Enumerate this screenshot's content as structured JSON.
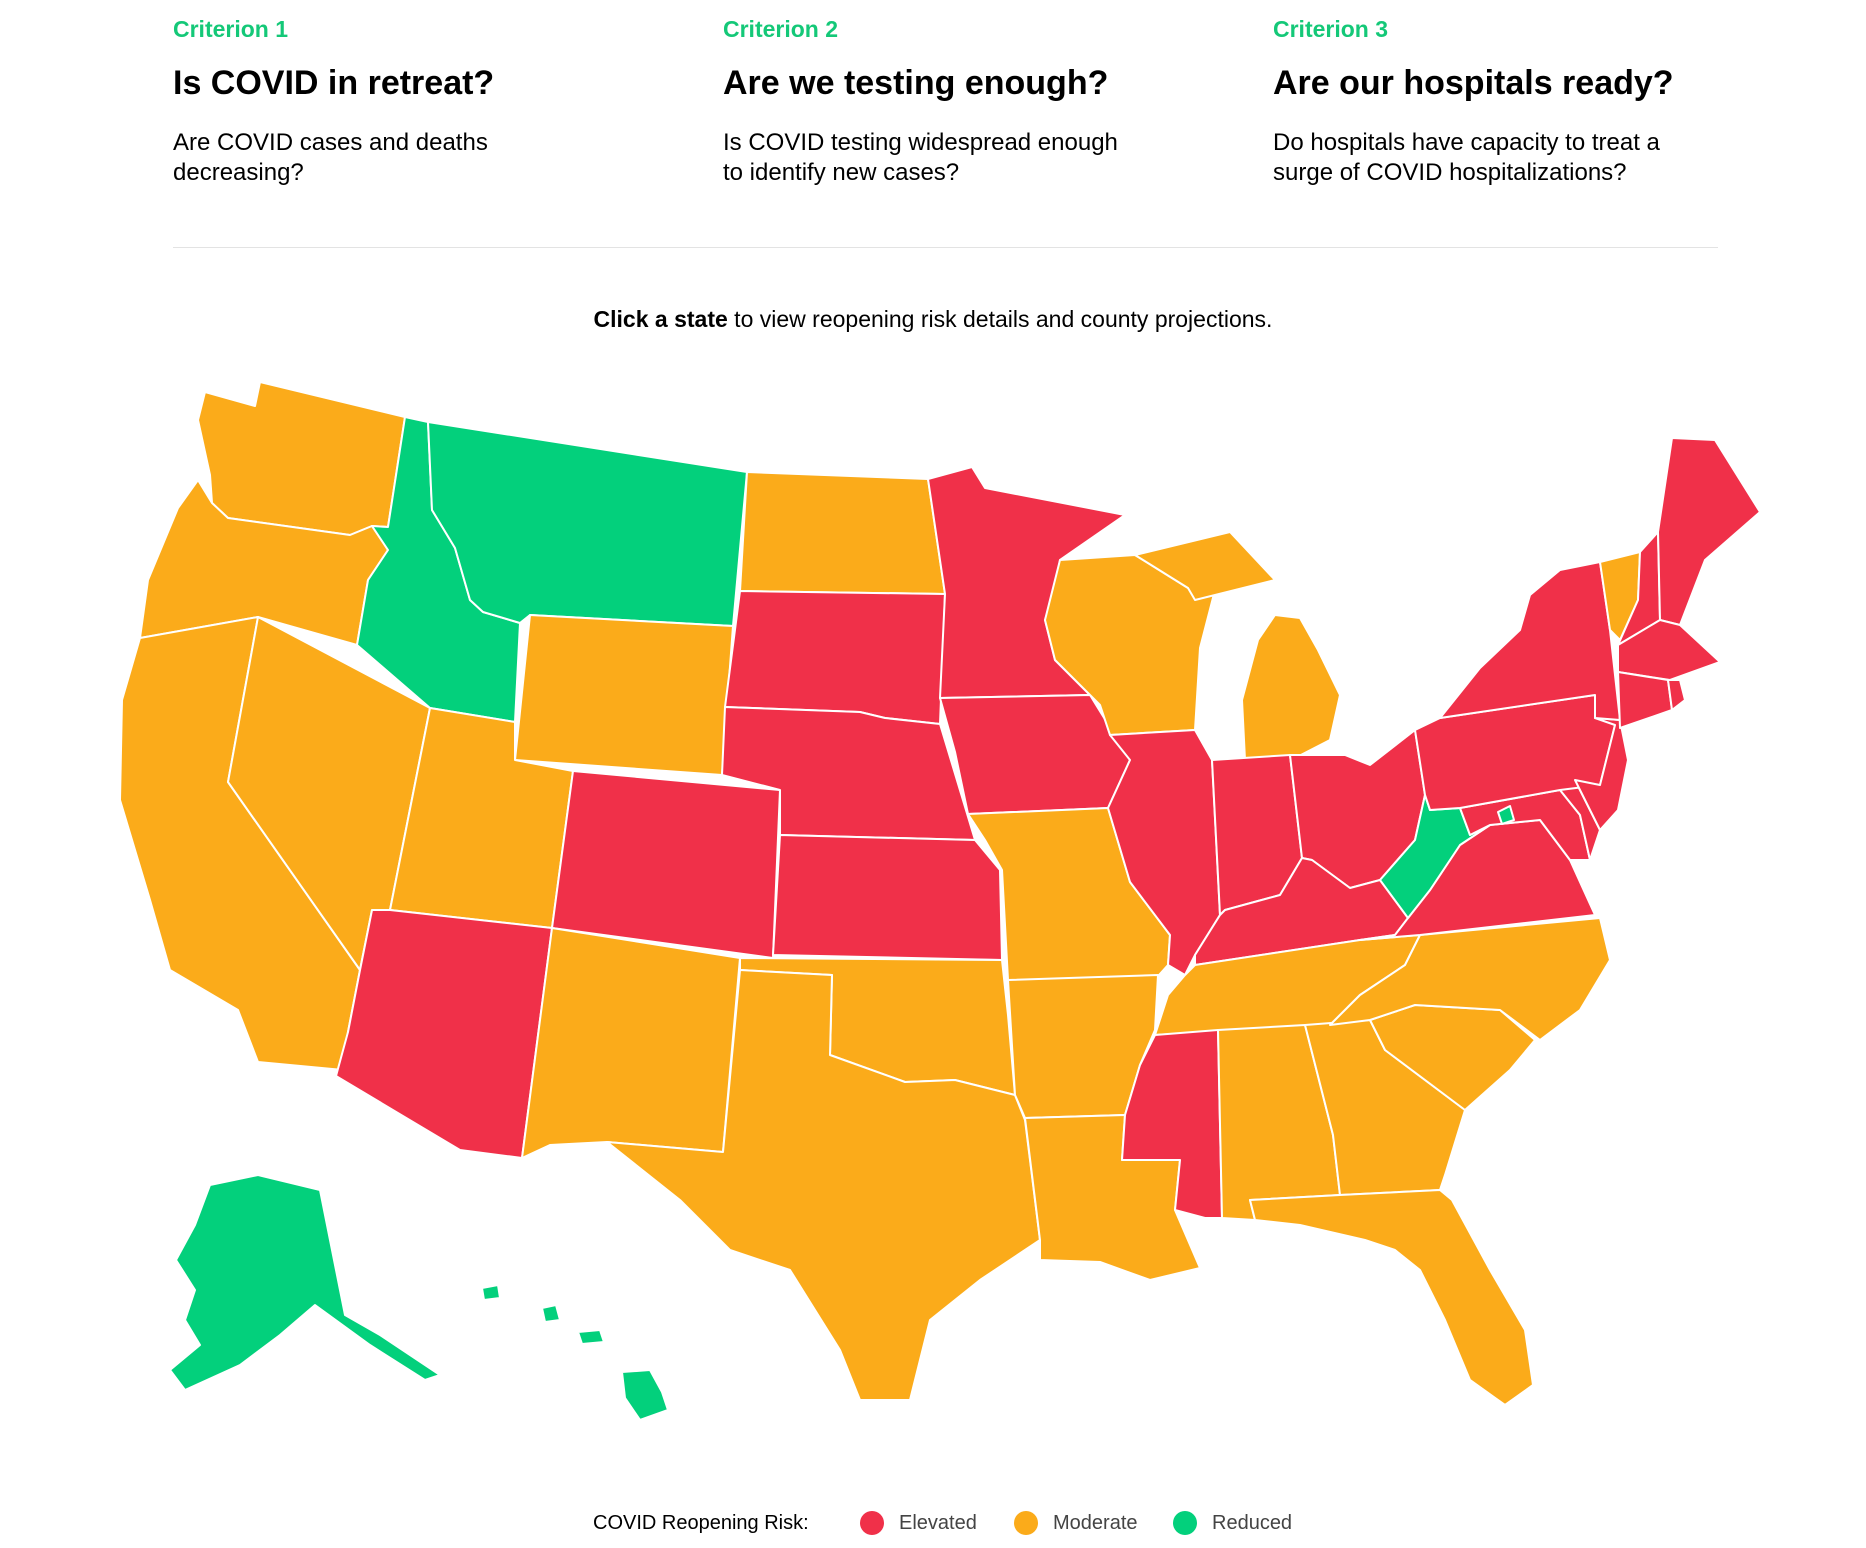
{
  "criteria": [
    {
      "label": "Criterion 1",
      "title": "Is COVID in retreat?",
      "description": "Are COVID cases and deaths decreasing?"
    },
    {
      "label": "Criterion 2",
      "title": "Are we testing enough?",
      "description": "Is COVID testing widespread enough to identify new cases?"
    },
    {
      "label": "Criterion 3",
      "title": "Are our hospitals ready?",
      "description": "Do hospitals have capacity to treat a surge of COVID hospitalizations?"
    }
  ],
  "instruction": {
    "bold": "Click a state",
    "rest": " to view reopening risk details and county projections."
  },
  "colors": {
    "elevated": "#f03049",
    "moderate": "#fbab1a",
    "reduced": "#03d07c",
    "accent": "#14c878"
  },
  "legend": {
    "title": "COVID Reopening Risk:",
    "items": [
      {
        "label": "Elevated",
        "color": "#f03049"
      },
      {
        "label": "Moderate",
        "color": "#fbab1a"
      },
      {
        "label": "Reduced",
        "color": "#03d07c"
      }
    ]
  },
  "states": {
    "WA": "moderate",
    "OR": "moderate",
    "CA": "moderate",
    "NV": "moderate",
    "ID": "reduced",
    "MT": "reduced",
    "WY": "moderate",
    "UT": "moderate",
    "AZ": "elevated",
    "CO": "elevated",
    "NM": "moderate",
    "ND": "moderate",
    "SD": "elevated",
    "NE": "elevated",
    "KS": "elevated",
    "OK": "moderate",
    "TX": "moderate",
    "MN": "elevated",
    "IA": "elevated",
    "MO": "moderate",
    "AR": "moderate",
    "LA": "moderate",
    "WI": "moderate",
    "IL": "elevated",
    "MI": "moderate",
    "IN": "elevated",
    "OH": "elevated",
    "KY": "elevated",
    "TN": "moderate",
    "MS": "elevated",
    "AL": "moderate",
    "GA": "moderate",
    "FL": "moderate",
    "SC": "moderate",
    "NC": "moderate",
    "VA": "elevated",
    "WV": "reduced",
    "MD": "elevated",
    "DE": "elevated",
    "NJ": "elevated",
    "PA": "elevated",
    "NY": "elevated",
    "CT": "elevated",
    "RI": "elevated",
    "MA": "elevated",
    "VT": "moderate",
    "NH": "elevated",
    "ME": "elevated",
    "AK": "reduced",
    "HI": "reduced",
    "DC": "reduced"
  }
}
